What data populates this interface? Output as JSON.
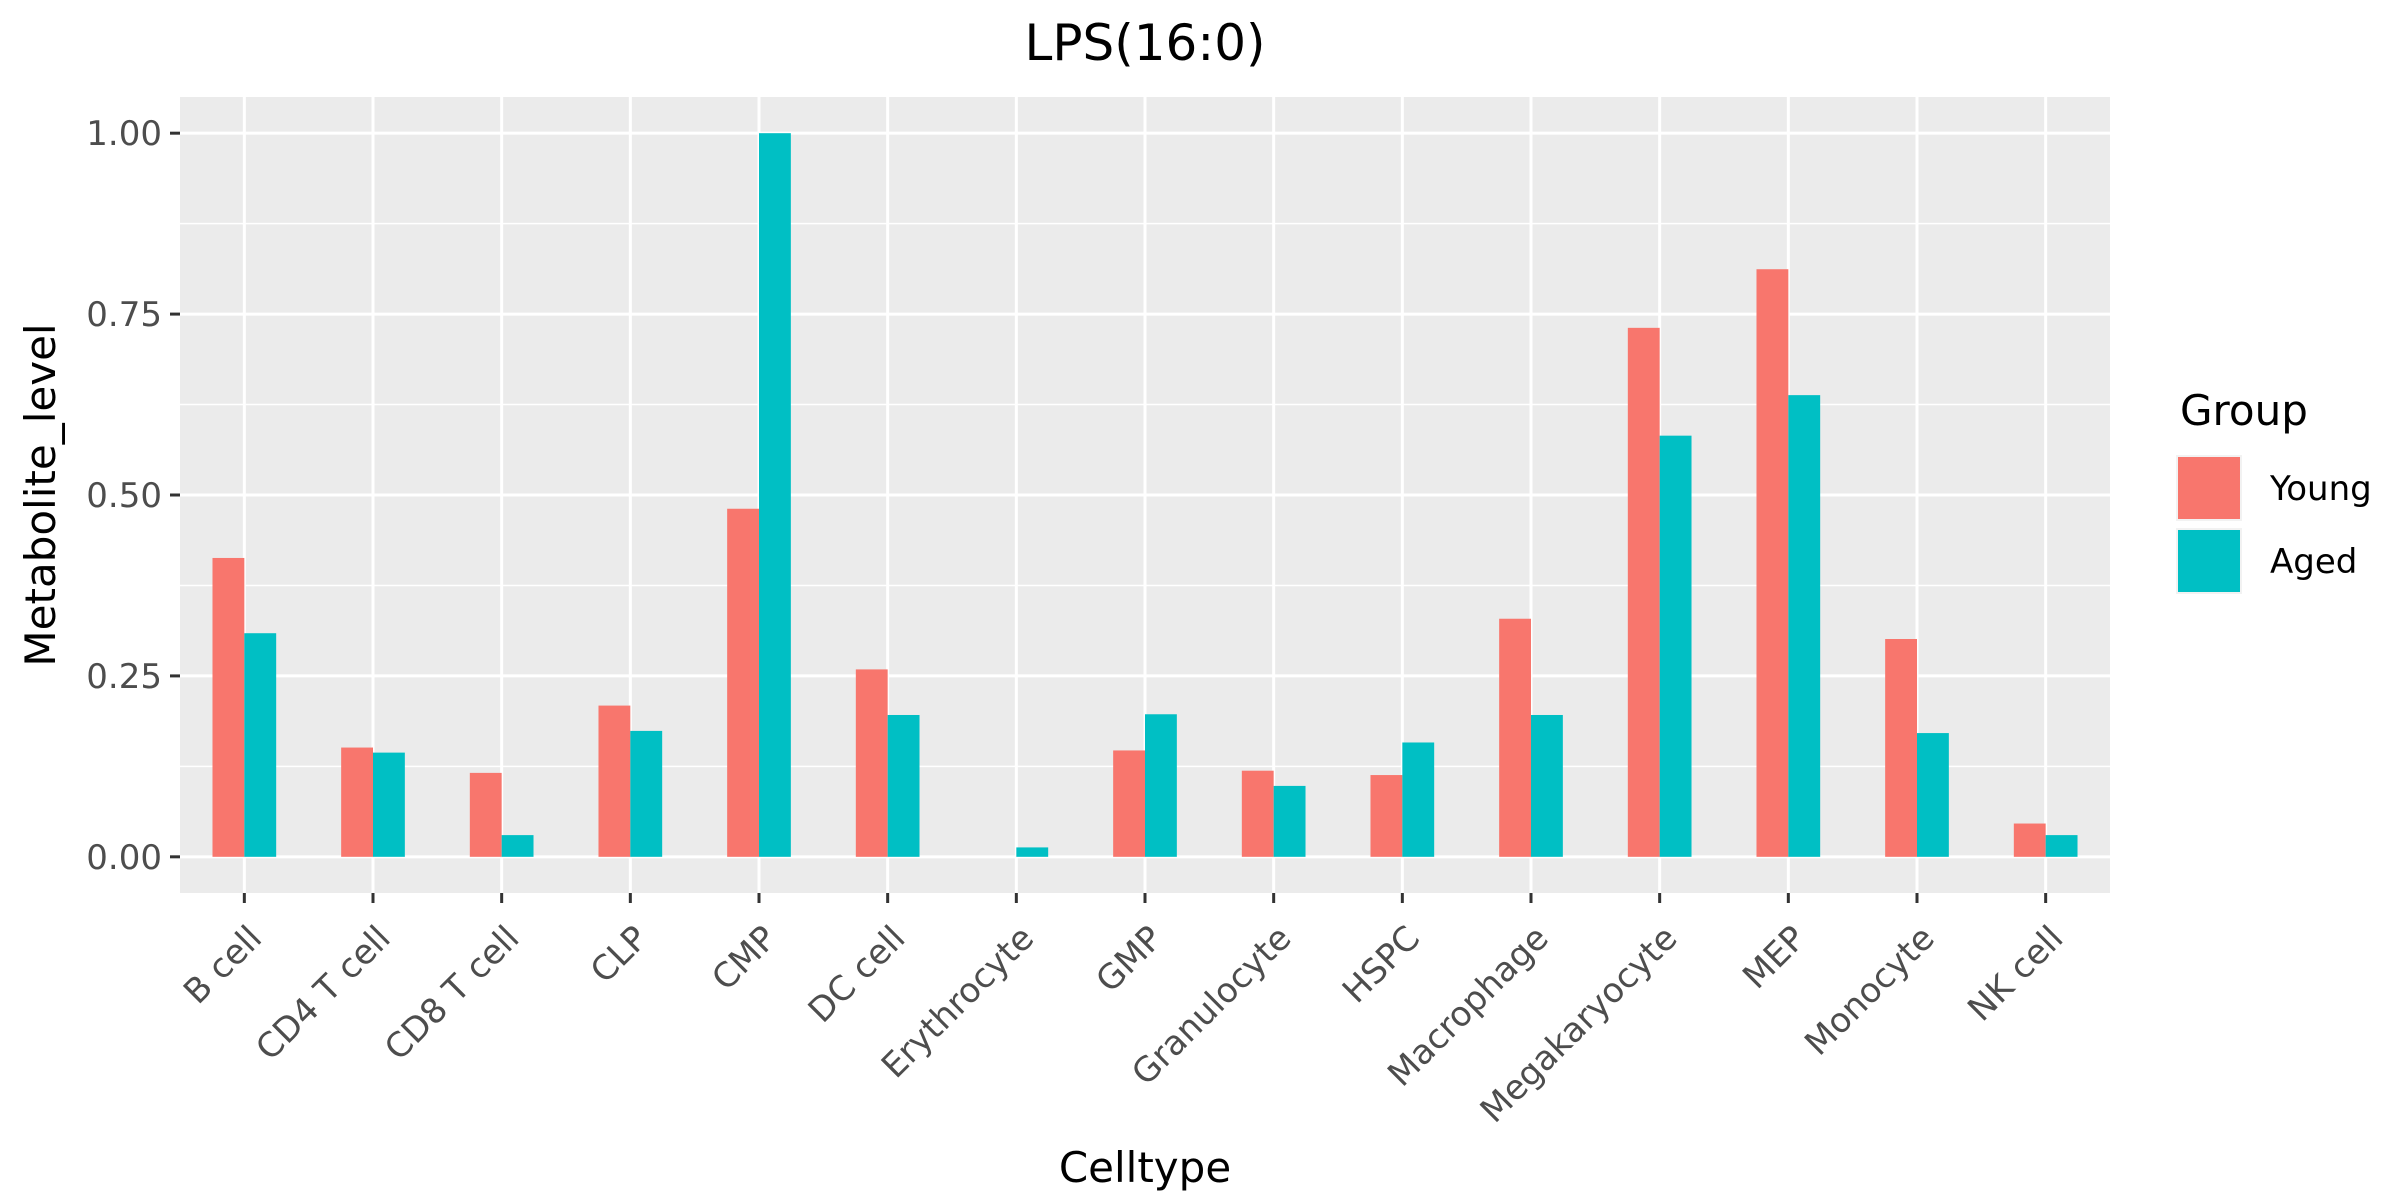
{
  "chart_data": {
    "type": "bar",
    "title": "LPS(16:0)",
    "xlabel": "Celltype",
    "ylabel": "Metabolite_level",
    "categories": [
      "B cell",
      "CD4 T cell",
      "CD8 T cell",
      "CLP",
      "CMP",
      "DC cell",
      "Erythrocyte",
      "GMP",
      "Granulocyte",
      "HSPC",
      "Macrophage",
      "Megakaryocyte",
      "MEP",
      "Monocyte",
      "NK cell"
    ],
    "series": [
      {
        "name": "Young",
        "color": "#F8766D",
        "values": [
          0.413,
          0.151,
          0.116,
          0.209,
          0.481,
          0.259,
          null,
          0.147,
          0.119,
          0.113,
          0.329,
          0.731,
          0.812,
          0.301,
          0.046
        ]
      },
      {
        "name": "Aged",
        "color": "#00BFC4",
        "values": [
          0.309,
          0.144,
          0.03,
          0.174,
          1.0,
          0.196,
          0.013,
          0.197,
          0.098,
          0.158,
          0.196,
          0.582,
          0.638,
          0.171,
          0.03
        ]
      }
    ],
    "ylim": [
      -0.05,
      1.05
    ],
    "yticks": [
      0,
      0.25,
      0.5,
      0.75,
      1.0
    ],
    "ytick_labels": [
      "0.00",
      "0.25",
      "0.50",
      "0.75",
      "1.00"
    ],
    "legend": {
      "title": "Group",
      "position": "right"
    },
    "grid": true,
    "panel_background": "#EBEBEB",
    "grid_color": "#FFFFFF"
  }
}
